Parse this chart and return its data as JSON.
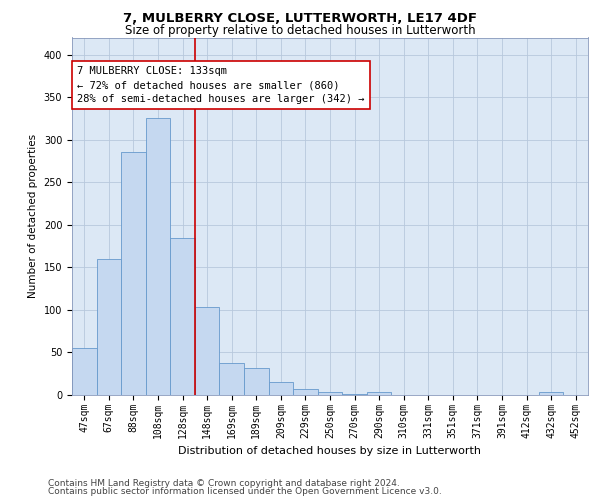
{
  "title1": "7, MULBERRY CLOSE, LUTTERWORTH, LE17 4DF",
  "title2": "Size of property relative to detached houses in Lutterworth",
  "xlabel": "Distribution of detached houses by size in Lutterworth",
  "ylabel": "Number of detached properties",
  "categories": [
    "47sqm",
    "67sqm",
    "88sqm",
    "108sqm",
    "128sqm",
    "148sqm",
    "169sqm",
    "189sqm",
    "209sqm",
    "229sqm",
    "250sqm",
    "270sqm",
    "290sqm",
    "310sqm",
    "331sqm",
    "351sqm",
    "371sqm",
    "391sqm",
    "412sqm",
    "432sqm",
    "452sqm"
  ],
  "values": [
    55,
    160,
    285,
    325,
    185,
    103,
    38,
    32,
    15,
    7,
    4,
    1,
    4,
    0,
    0,
    0,
    0,
    0,
    0,
    3,
    0
  ],
  "bar_color": "#c5d8f0",
  "bar_edge_color": "#6699cc",
  "vline_index": 4,
  "vline_color": "#cc0000",
  "annotation_text": "7 MULBERRY CLOSE: 133sqm\n← 72% of detached houses are smaller (860)\n28% of semi-detached houses are larger (342) →",
  "annotation_box_color": "#ffffff",
  "annotation_box_edge": "#cc0000",
  "ylim": [
    0,
    420
  ],
  "yticks": [
    0,
    50,
    100,
    150,
    200,
    250,
    300,
    350,
    400
  ],
  "plot_bg_color": "#dce8f5",
  "fig_bg_color": "#ffffff",
  "grid_color": "#b8c8dc",
  "footer1": "Contains HM Land Registry data © Crown copyright and database right 2024.",
  "footer2": "Contains public sector information licensed under the Open Government Licence v3.0.",
  "title1_fontsize": 9.5,
  "title2_fontsize": 8.5,
  "xlabel_fontsize": 8,
  "ylabel_fontsize": 7.5,
  "tick_fontsize": 7,
  "annotation_fontsize": 7.5,
  "footer_fontsize": 6.5
}
